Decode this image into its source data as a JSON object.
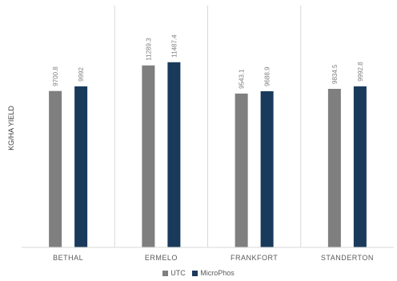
{
  "chart_data": {
    "type": "bar",
    "categories": [
      "BETHAL",
      "ERMELO",
      "FRANKFORT",
      "STANDERTON"
    ],
    "series": [
      {
        "name": "UTC",
        "values": [
          9700.8,
          11289.3,
          9543.1,
          9834.5
        ],
        "color": "#7f7f7f"
      },
      {
        "name": "MicroPhos",
        "values": [
          9992,
          11487.4,
          9688.9,
          9992.8
        ],
        "color": "#1a3a5c"
      }
    ],
    "labels": [
      [
        "9700.8",
        "11289.3",
        "9543.1",
        "9834.5"
      ],
      [
        "9992",
        "11487.4",
        "9688.9",
        "9992.8"
      ]
    ],
    "ylabel": "KG/HA YIELD",
    "ylim": [
      0,
      15000
    ],
    "grid": false,
    "legend_position": "bottom"
  }
}
